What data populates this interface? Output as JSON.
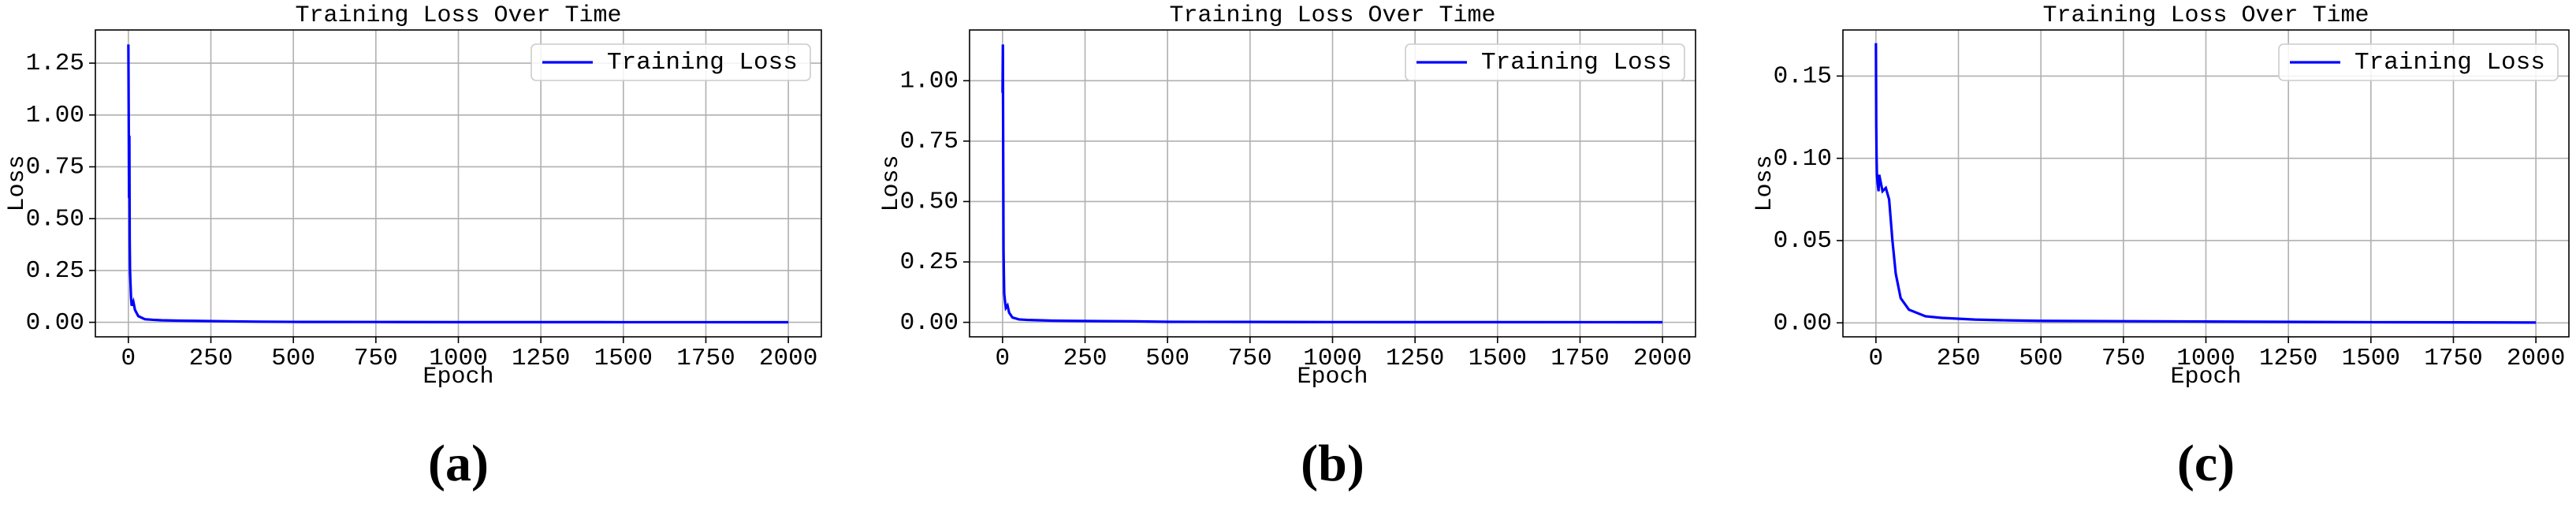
{
  "chart_data": [
    {
      "type": "line",
      "title": "Training Loss Over Time",
      "xlabel": "Epoch",
      "ylabel": "Loss",
      "caption": "(a)",
      "x": [
        0,
        1,
        2,
        3,
        4,
        5,
        8,
        10,
        15,
        20,
        30,
        50,
        75,
        100,
        150,
        200,
        300,
        400,
        500,
        750,
        1000,
        1500,
        2000
      ],
      "series": [
        {
          "name": "Training Loss",
          "color": "#0000ff",
          "values": [
            1.34,
            1.0,
            0.6,
            0.9,
            0.4,
            0.25,
            0.12,
            0.08,
            0.1,
            0.06,
            0.03,
            0.015,
            0.012,
            0.01,
            0.008,
            0.007,
            0.005,
            0.003,
            0.002,
            0.0015,
            0.001,
            0.0007,
            0.0005
          ]
        }
      ],
      "xlim": [
        -100,
        2100
      ],
      "xticks": [
        0,
        250,
        500,
        750,
        1000,
        1250,
        1500,
        1750,
        2000
      ],
      "ylim": [
        -0.07,
        1.41
      ],
      "yticks": [
        {
          "value": 0,
          "label": "0.00"
        },
        0.25,
        {
          "value": 0.5,
          "label": "0.50"
        },
        0.75,
        {
          "value": 1,
          "label": "1.00"
        },
        1.25
      ],
      "grid": true,
      "legend": "upper right"
    },
    {
      "type": "line",
      "title": "Training Loss Over Time",
      "xlabel": "Epoch",
      "ylabel": "Loss",
      "caption": "(b)",
      "x": [
        0,
        1,
        2,
        3,
        4,
        5,
        8,
        10,
        15,
        20,
        30,
        50,
        75,
        100,
        150,
        200,
        300,
        400,
        500,
        750,
        1000,
        1500,
        2000
      ],
      "series": [
        {
          "name": "Training Loss",
          "color": "#0000ff",
          "values": [
            0.95,
            1.15,
            0.7,
            0.3,
            0.2,
            0.12,
            0.08,
            0.06,
            0.07,
            0.04,
            0.02,
            0.012,
            0.01,
            0.009,
            0.007,
            0.006,
            0.005,
            0.004,
            0.002,
            0.0015,
            0.001,
            0.0007,
            0.0005
          ]
        }
      ],
      "xlim": [
        -100,
        2100
      ],
      "xticks": [
        0,
        250,
        500,
        750,
        1000,
        1250,
        1500,
        1750,
        2000
      ],
      "ylim": [
        -0.06,
        1.21
      ],
      "yticks": [
        {
          "value": 0,
          "label": "0.00"
        },
        0.25,
        {
          "value": 0.5,
          "label": "0.50"
        },
        0.75,
        {
          "value": 1,
          "label": "1.00"
        }
      ],
      "grid": true,
      "legend": "upper right"
    },
    {
      "type": "line",
      "title": "Training Loss Over Time",
      "xlabel": "Epoch",
      "ylabel": "Loss",
      "caption": "(c)",
      "x": [
        0,
        1,
        2,
        3,
        5,
        8,
        10,
        15,
        20,
        30,
        40,
        50,
        60,
        75,
        100,
        150,
        200,
        300,
        400,
        500,
        750,
        1000,
        1500,
        2000
      ],
      "series": [
        {
          "name": "Training Loss",
          "color": "#0000ff",
          "values": [
            0.17,
            0.12,
            0.1,
            0.09,
            0.085,
            0.08,
            0.09,
            0.085,
            0.08,
            0.082,
            0.075,
            0.05,
            0.03,
            0.015,
            0.008,
            0.004,
            0.003,
            0.002,
            0.0015,
            0.0012,
            0.001,
            0.0008,
            0.0004,
            0.0002
          ]
        }
      ],
      "xlim": [
        -100,
        2100
      ],
      "xticks": [
        0,
        250,
        500,
        750,
        1000,
        1250,
        1500,
        1750,
        2000
      ],
      "ylim": [
        -0.0085,
        0.178
      ],
      "yticks": [
        {
          "value": 0,
          "label": "0.00"
        },
        0.05,
        {
          "value": 0.1,
          "label": "0.10"
        },
        0.15
      ],
      "grid": true,
      "legend": "upper right"
    }
  ]
}
